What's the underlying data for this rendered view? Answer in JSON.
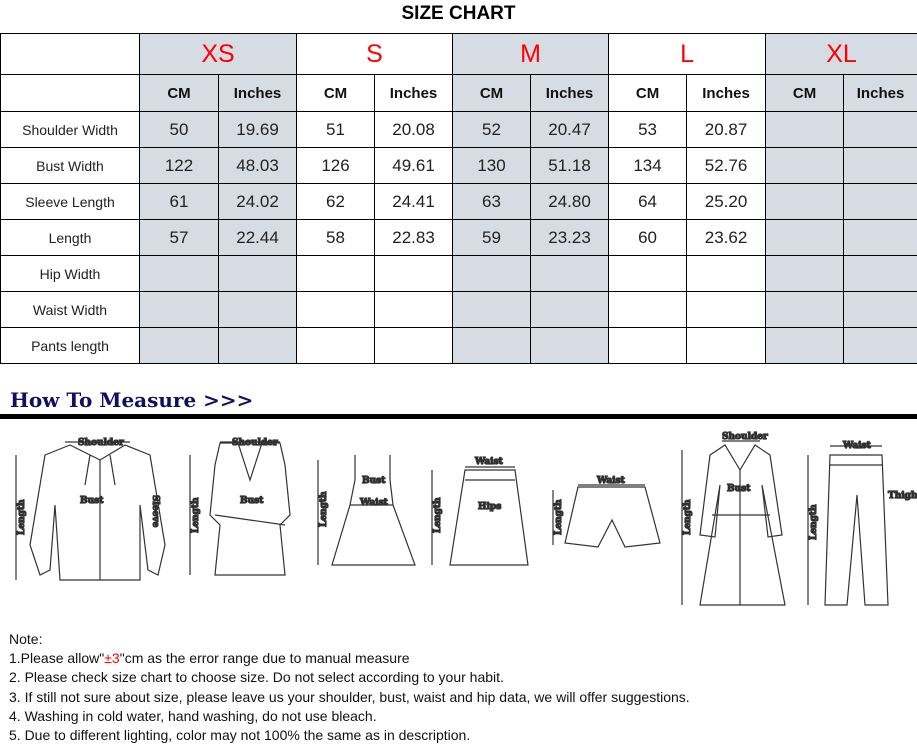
{
  "title": "SIZE CHART",
  "sizes": [
    "XS",
    "S",
    "M",
    "L",
    "XL"
  ],
  "units": {
    "cm": "CM",
    "inches": "Inches"
  },
  "rows": [
    {
      "label": "Shoulder Width",
      "values": [
        "50",
        "19.69",
        "51",
        "20.08",
        "52",
        "20.47",
        "53",
        "20.87",
        "",
        ""
      ]
    },
    {
      "label": "Bust Width",
      "values": [
        "122",
        "48.03",
        "126",
        "49.61",
        "130",
        "51.18",
        "134",
        "52.76",
        "",
        ""
      ]
    },
    {
      "label": "Sleeve Length",
      "values": [
        "61",
        "24.02",
        "62",
        "24.41",
        "63",
        "24.80",
        "64",
        "25.20",
        "",
        ""
      ]
    },
    {
      "label": "Length",
      "values": [
        "57",
        "22.44",
        "58",
        "22.83",
        "59",
        "23.23",
        "60",
        "23.62",
        "",
        ""
      ]
    },
    {
      "label": "Hip Width",
      "values": [
        "",
        "",
        "",
        "",
        "",
        "",
        "",
        "",
        "",
        ""
      ]
    },
    {
      "label": "Waist Width",
      "values": [
        "",
        "",
        "",
        "",
        "",
        "",
        "",
        "",
        "",
        ""
      ]
    },
    {
      "label": "Pants length",
      "values": [
        "",
        "",
        "",
        "",
        "",
        "",
        "",
        "",
        "",
        ""
      ]
    }
  ],
  "colors": {
    "size_label": "#ff0000",
    "shaded": "#d6dce4",
    "heading": "#101060"
  },
  "measure": {
    "heading": "How To Measure >>>",
    "labels": {
      "shoulder": "Shoulder",
      "bust": "Bust",
      "sleeve": "Sleeve",
      "length": "Length",
      "waist": "Waist",
      "hips": "Hips",
      "thigh": "Thigh"
    }
  },
  "notes": {
    "heading": "Note:",
    "n1_pre": "1.Please allow\"",
    "n1_red": "±3",
    "n1_post": "\"cm as the error range due to manual measure",
    "lines": [
      "2. Please check size chart to choose size. Do not select according to your habit.",
      "3. If still not sure about size, please leave us your shoulder, bust, waist and hip data, we will offer suggestions.",
      "4. Washing in cold water, hand washing, do not use bleach.",
      "5. Due to different lighting, color may not 100% the same as in description."
    ]
  }
}
